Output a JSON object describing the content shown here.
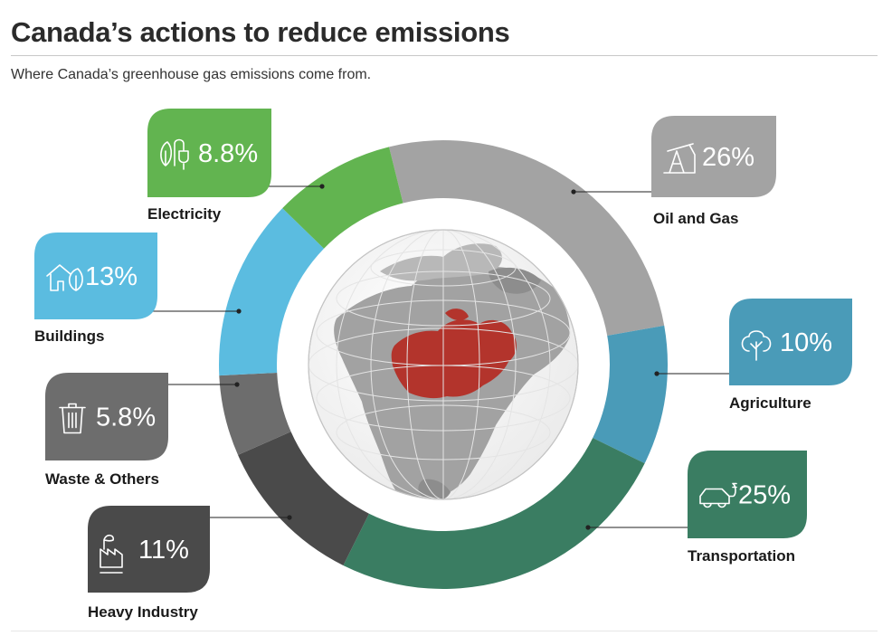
{
  "header": {
    "title": "Canada’s actions to reduce emissions",
    "subtitle": "Where Canada’s greenhouse gas emissions come from."
  },
  "chart_data": {
    "type": "pie",
    "donut": true,
    "unit": "%",
    "slices": [
      {
        "label": "Oil and Gas",
        "value": 26,
        "display": "26%",
        "color": "#a3a3a3",
        "icon": "oil-pump-icon"
      },
      {
        "label": "Agriculture",
        "value": 10,
        "display": "10%",
        "color": "#4a9bb8",
        "icon": "tree-icon"
      },
      {
        "label": "Transportation",
        "value": 25,
        "display": "25%",
        "color": "#3a7d62",
        "icon": "electric-car-icon"
      },
      {
        "label": "Heavy Industry",
        "value": 11,
        "display": "11%",
        "color": "#4a4a4a",
        "icon": "factory-icon"
      },
      {
        "label": "Waste & Others",
        "value": 5.8,
        "display": "5.8%",
        "color": "#6d6d6d",
        "icon": "trash-can-icon"
      },
      {
        "label": "Buildings",
        "value": 13,
        "display": "13%",
        "color": "#5bbce0",
        "icon": "house-leaf-icon"
      },
      {
        "label": "Electricity",
        "value": 8.8,
        "display": "8.8%",
        "color": "#62b450",
        "icon": "plug-leaf-icon"
      }
    ]
  },
  "globe": {
    "icon": "north-america-globe-icon",
    "highlight_color": "#b3342c"
  }
}
